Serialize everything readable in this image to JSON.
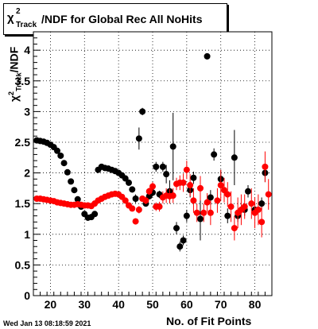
{
  "title": {
    "symbol": "χ",
    "superscript": "2",
    "subscript": "Track",
    "text": "/NDF for Global Rec All NoHits"
  },
  "timestamp": "Wed Jan 13 08:18:59 2021",
  "colors": {
    "series_black": "#000000",
    "series_red": "#ff0000",
    "frame": "#000000",
    "grid": "#000000"
  },
  "chart_data": {
    "type": "scatter",
    "title": "χ²Track/NDF for Global Rec All NoHits",
    "xlabel": "No. of Fit Points",
    "ylabel": "χ²Track/NDF",
    "xlim": [
      15,
      85
    ],
    "ylim": [
      0,
      4.3
    ],
    "grid": true,
    "x_ticks": [
      20,
      30,
      40,
      50,
      60,
      70,
      80
    ],
    "y_ticks": [
      0,
      0.5,
      1,
      1.5,
      2,
      2.5,
      3,
      3.5,
      4
    ],
    "series": [
      {
        "color": "#000000",
        "points": [
          {
            "x": 16,
            "y": 2.53,
            "err": 0.03
          },
          {
            "x": 17,
            "y": 2.52,
            "err": 0.03
          },
          {
            "x": 18,
            "y": 2.51,
            "err": 0.03
          },
          {
            "x": 19,
            "y": 2.49,
            "err": 0.03
          },
          {
            "x": 20,
            "y": 2.46,
            "err": 0.03
          },
          {
            "x": 21,
            "y": 2.42,
            "err": 0.03
          },
          {
            "x": 22,
            "y": 2.36,
            "err": 0.03
          },
          {
            "x": 23,
            "y": 2.28,
            "err": 0.03
          },
          {
            "x": 24,
            "y": 2.16,
            "err": 0.03
          },
          {
            "x": 25,
            "y": 2.01,
            "err": 0.03
          },
          {
            "x": 26,
            "y": 1.86,
            "err": 0.03
          },
          {
            "x": 27,
            "y": 1.72,
            "err": 0.03
          },
          {
            "x": 28,
            "y": 1.57,
            "err": 0.03
          },
          {
            "x": 29,
            "y": 1.45,
            "err": 0.03
          },
          {
            "x": 30,
            "y": 1.33,
            "err": 0.03
          },
          {
            "x": 31,
            "y": 1.27,
            "err": 0.03
          },
          {
            "x": 32,
            "y": 1.28,
            "err": 0.03
          },
          {
            "x": 33,
            "y": 1.33,
            "err": 0.03
          },
          {
            "x": 34,
            "y": 2.05,
            "err": 0.03
          },
          {
            "x": 35,
            "y": 2.1,
            "err": 0.03
          },
          {
            "x": 36,
            "y": 2.08,
            "err": 0.03
          },
          {
            "x": 37,
            "y": 2.07,
            "err": 0.03
          },
          {
            "x": 38,
            "y": 2.05,
            "err": 0.03
          },
          {
            "x": 39,
            "y": 2.03,
            "err": 0.03
          },
          {
            "x": 40,
            "y": 2.0,
            "err": 0.03
          },
          {
            "x": 41,
            "y": 1.96,
            "err": 0.04
          },
          {
            "x": 42,
            "y": 1.91,
            "err": 0.04
          },
          {
            "x": 43,
            "y": 1.84,
            "err": 0.05
          },
          {
            "x": 44,
            "y": 1.73,
            "err": 0.05
          },
          {
            "x": 45,
            "y": 1.58,
            "err": 0.07
          },
          {
            "x": 46,
            "y": 2.56,
            "err": 0.18
          },
          {
            "x": 47,
            "y": 3.0,
            "err": 0.06
          },
          {
            "x": 48,
            "y": 1.5,
            "err": 0.05
          },
          {
            "x": 49,
            "y": 1.62,
            "err": 0.05
          },
          {
            "x": 50,
            "y": 1.68,
            "err": 0.06
          },
          {
            "x": 51,
            "y": 2.1,
            "err": 0.08
          },
          {
            "x": 52,
            "y": 1.65,
            "err": 0.06
          },
          {
            "x": 53,
            "y": 2.1,
            "err": 0.08
          },
          {
            "x": 54,
            "y": 1.98,
            "err": 0.15
          },
          {
            "x": 55,
            "y": 1.7,
            "err": 0.18
          },
          {
            "x": 56,
            "y": 2.43,
            "err": 0.55
          },
          {
            "x": 57,
            "y": 1.1,
            "err": 0.1
          },
          {
            "x": 58,
            "y": 0.8,
            "err": 0.08
          },
          {
            "x": 59,
            "y": 0.9,
            "err": 0.08
          },
          {
            "x": 60,
            "y": 1.3,
            "err": 0.1
          },
          {
            "x": 61,
            "y": 1.72,
            "err": 0.12
          },
          {
            "x": 62,
            "y": 1.92,
            "err": 0.1
          },
          {
            "x": 64,
            "y": 1.25,
            "err": 0.35
          },
          {
            "x": 66,
            "y": 3.9,
            "err": 0.04
          },
          {
            "x": 67,
            "y": 1.6,
            "err": 0.12
          },
          {
            "x": 68,
            "y": 2.3,
            "err": 0.1
          },
          {
            "x": 70,
            "y": 1.9,
            "err": 0.15
          },
          {
            "x": 72,
            "y": 1.3,
            "err": 0.12
          },
          {
            "x": 74,
            "y": 2.25,
            "err": 0.45
          },
          {
            "x": 75,
            "y": 1.3,
            "err": 0.1
          },
          {
            "x": 77,
            "y": 1.4,
            "err": 0.1
          },
          {
            "x": 78,
            "y": 1.7,
            "err": 0.1
          },
          {
            "x": 80,
            "y": 1.4,
            "err": 0.1
          },
          {
            "x": 82,
            "y": 1.5,
            "err": 0.1
          },
          {
            "x": 83,
            "y": 2.0,
            "err": 0.15
          }
        ]
      },
      {
        "color": "#ff0000",
        "points": [
          {
            "x": 16,
            "y": 1.58,
            "err": 0.02
          },
          {
            "x": 17,
            "y": 1.58,
            "err": 0.02
          },
          {
            "x": 18,
            "y": 1.57,
            "err": 0.02
          },
          {
            "x": 19,
            "y": 1.56,
            "err": 0.02
          },
          {
            "x": 20,
            "y": 1.55,
            "err": 0.02
          },
          {
            "x": 21,
            "y": 1.54,
            "err": 0.02
          },
          {
            "x": 22,
            "y": 1.52,
            "err": 0.02
          },
          {
            "x": 23,
            "y": 1.51,
            "err": 0.02
          },
          {
            "x": 24,
            "y": 1.5,
            "err": 0.02
          },
          {
            "x": 25,
            "y": 1.49,
            "err": 0.02
          },
          {
            "x": 26,
            "y": 1.48,
            "err": 0.02
          },
          {
            "x": 27,
            "y": 1.48,
            "err": 0.02
          },
          {
            "x": 28,
            "y": 1.49,
            "err": 0.02
          },
          {
            "x": 29,
            "y": 1.48,
            "err": 0.02
          },
          {
            "x": 30,
            "y": 1.47,
            "err": 0.02
          },
          {
            "x": 31,
            "y": 1.47,
            "err": 0.02
          },
          {
            "x": 32,
            "y": 1.46,
            "err": 0.02
          },
          {
            "x": 33,
            "y": 1.5,
            "err": 0.02
          },
          {
            "x": 34,
            "y": 1.55,
            "err": 0.02
          },
          {
            "x": 35,
            "y": 1.58,
            "err": 0.02
          },
          {
            "x": 36,
            "y": 1.61,
            "err": 0.02
          },
          {
            "x": 37,
            "y": 1.63,
            "err": 0.02
          },
          {
            "x": 38,
            "y": 1.65,
            "err": 0.02
          },
          {
            "x": 39,
            "y": 1.66,
            "err": 0.02
          },
          {
            "x": 40,
            "y": 1.65,
            "err": 0.02
          },
          {
            "x": 41,
            "y": 1.61,
            "err": 0.03
          },
          {
            "x": 42,
            "y": 1.55,
            "err": 0.03
          },
          {
            "x": 43,
            "y": 1.47,
            "err": 0.03
          },
          {
            "x": 44,
            "y": 1.42,
            "err": 0.04
          },
          {
            "x": 45,
            "y": 1.21,
            "err": 0.05
          },
          {
            "x": 46,
            "y": 1.4,
            "err": 0.06
          },
          {
            "x": 47,
            "y": 1.58,
            "err": 0.05
          },
          {
            "x": 48,
            "y": 1.55,
            "err": 0.06
          },
          {
            "x": 49,
            "y": 1.7,
            "err": 0.06
          },
          {
            "x": 50,
            "y": 1.78,
            "err": 0.07
          },
          {
            "x": 51,
            "y": 1.45,
            "err": 0.07
          },
          {
            "x": 52,
            "y": 1.45,
            "err": 0.08
          },
          {
            "x": 53,
            "y": 1.6,
            "err": 0.1
          },
          {
            "x": 54,
            "y": 1.63,
            "err": 0.12
          },
          {
            "x": 55,
            "y": 1.62,
            "err": 0.12
          },
          {
            "x": 56,
            "y": 1.63,
            "err": 0.12
          },
          {
            "x": 57,
            "y": 1.82,
            "err": 0.1
          },
          {
            "x": 58,
            "y": 1.84,
            "err": 0.12
          },
          {
            "x": 59,
            "y": 1.84,
            "err": 0.15
          },
          {
            "x": 60,
            "y": 2.05,
            "err": 0.15
          },
          {
            "x": 61,
            "y": 1.8,
            "err": 0.18
          },
          {
            "x": 62,
            "y": 1.55,
            "err": 0.2
          },
          {
            "x": 63,
            "y": 1.35,
            "err": 0.15
          },
          {
            "x": 64,
            "y": 1.75,
            "err": 0.2
          },
          {
            "x": 65,
            "y": 1.35,
            "err": 0.15
          },
          {
            "x": 66,
            "y": 1.52,
            "err": 0.15
          },
          {
            "x": 67,
            "y": 1.35,
            "err": 0.2
          },
          {
            "x": 69,
            "y": 1.55,
            "err": 0.2
          },
          {
            "x": 70,
            "y": 1.8,
            "err": 0.25
          },
          {
            "x": 71,
            "y": 1.72,
            "err": 0.2
          },
          {
            "x": 72,
            "y": 1.65,
            "err": 0.2
          },
          {
            "x": 73,
            "y": 1.45,
            "err": 0.25
          },
          {
            "x": 74,
            "y": 1.1,
            "err": 0.2
          },
          {
            "x": 75,
            "y": 1.35,
            "err": 0.25
          },
          {
            "x": 76,
            "y": 1.4,
            "err": 0.25
          },
          {
            "x": 77,
            "y": 1.45,
            "err": 0.2
          },
          {
            "x": 79,
            "y": 1.5,
            "err": 0.25
          },
          {
            "x": 80,
            "y": 1.35,
            "err": 0.25
          },
          {
            "x": 81,
            "y": 1.4,
            "err": 0.25
          },
          {
            "x": 82,
            "y": 1.2,
            "err": 0.25
          },
          {
            "x": 83,
            "y": 2.1,
            "err": 0.25
          },
          {
            "x": 84,
            "y": 1.65,
            "err": 0.25
          }
        ]
      }
    ]
  }
}
